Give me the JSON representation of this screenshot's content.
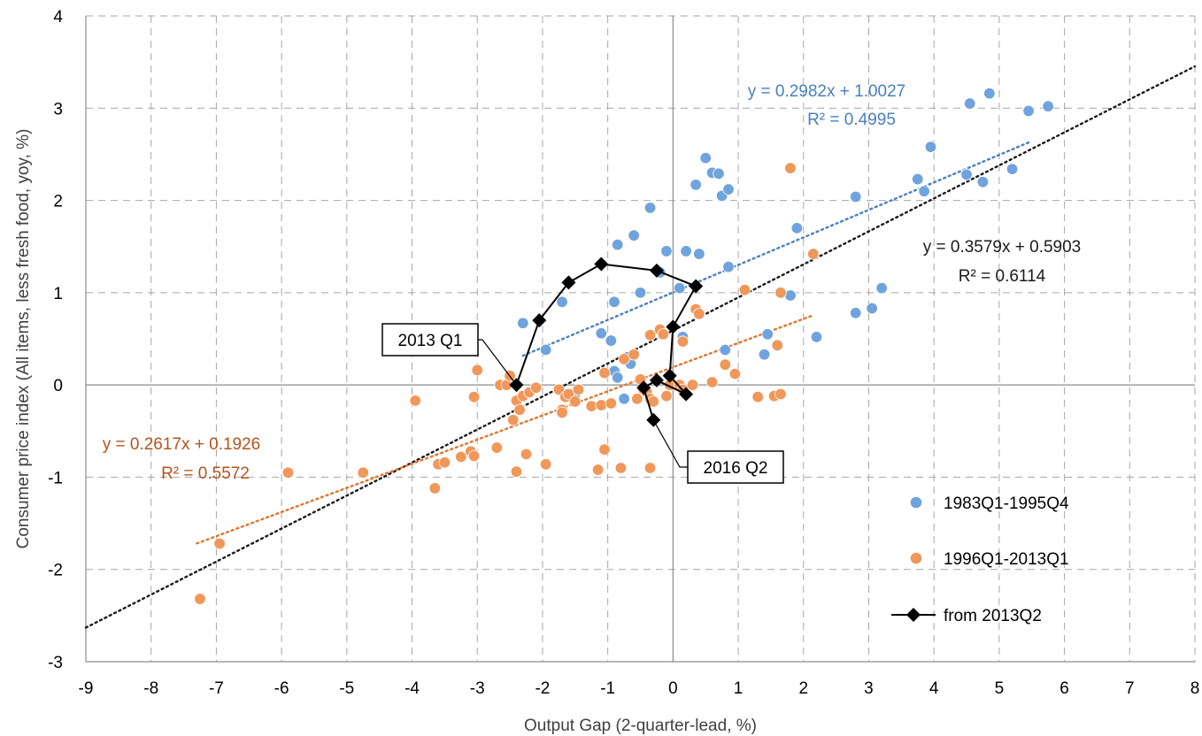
{
  "chart_data": {
    "type": "scatter",
    "xlabel": "Output Gap (2-quarter-lead, %)",
    "ylabel": "Consumer price index (All items, less fresh food, yoy, %)",
    "xlim": [
      -9,
      8
    ],
    "ylim": [
      -3,
      4
    ],
    "x_ticks": [
      "-9",
      "-8",
      "-7",
      "-6",
      "-5",
      "-4",
      "-3",
      "-2",
      "-1",
      "0",
      "1",
      "2",
      "3",
      "4",
      "5",
      "6",
      "7",
      "8"
    ],
    "y_ticks": [
      "-3",
      "-2",
      "-1",
      "0",
      "1",
      "2",
      "3",
      "4"
    ],
    "grid": true,
    "legend_position": "right",
    "series": [
      {
        "name": "1983Q1-1995Q4",
        "color": "#6fa3dd",
        "marker": "circle",
        "points": [
          [
            -2.3,
            0.67
          ],
          [
            -1.95,
            0.38
          ],
          [
            -1.7,
            0.9
          ],
          [
            -0.9,
            0.9
          ],
          [
            -1.1,
            0.56
          ],
          [
            -0.95,
            0.48
          ],
          [
            -0.85,
            1.52
          ],
          [
            -0.6,
            1.62
          ],
          [
            -0.35,
            1.92
          ],
          [
            -0.2,
            1.22
          ],
          [
            -0.1,
            1.45
          ],
          [
            0.35,
            2.17
          ],
          [
            0.5,
            2.46
          ],
          [
            0.6,
            2.3
          ],
          [
            0.7,
            2.29
          ],
          [
            0.75,
            2.05
          ],
          [
            0.85,
            2.12
          ],
          [
            0.2,
            1.45
          ],
          [
            0.4,
            1.42
          ],
          [
            0.85,
            1.28
          ],
          [
            0.1,
            1.05
          ],
          [
            -0.5,
            1.0
          ],
          [
            -0.9,
            0.15
          ],
          [
            -0.85,
            0.08
          ],
          [
            -0.7,
            0.3
          ],
          [
            -0.65,
            0.23
          ],
          [
            -0.75,
            -0.15
          ],
          [
            -1.5,
            -0.1
          ],
          [
            0.15,
            0.52
          ],
          [
            0.8,
            0.38
          ],
          [
            1.4,
            0.33
          ],
          [
            1.45,
            0.55
          ],
          [
            1.8,
            0.97
          ],
          [
            1.9,
            1.7
          ],
          [
            2.2,
            0.52
          ],
          [
            2.8,
            0.78
          ],
          [
            2.8,
            2.04
          ],
          [
            3.05,
            0.83
          ],
          [
            3.2,
            1.05
          ],
          [
            3.75,
            2.23
          ],
          [
            3.85,
            2.1
          ],
          [
            3.95,
            2.58
          ],
          [
            4.5,
            2.28
          ],
          [
            4.55,
            3.05
          ],
          [
            4.75,
            2.2
          ],
          [
            4.85,
            3.16
          ],
          [
            5.2,
            2.34
          ],
          [
            5.45,
            2.97
          ],
          [
            5.75,
            3.02
          ]
        ],
        "trendline": {
          "equation": "y = 0.2982x + 1.0027",
          "r2": "R² = 0.4995",
          "slope": 0.2982,
          "intercept": 1.0027,
          "x_range": [
            -2.3,
            5.5
          ]
        }
      },
      {
        "name": "1996Q1-2013Q1",
        "color": "#f0975a",
        "marker": "circle",
        "points": [
          [
            -7.25,
            -2.32
          ],
          [
            -6.95,
            -1.72
          ],
          [
            -5.9,
            -0.95
          ],
          [
            -4.75,
            -0.95
          ],
          [
            -3.95,
            -0.17
          ],
          [
            -3.65,
            -1.12
          ],
          [
            -3.6,
            -0.86
          ],
          [
            -3.5,
            -0.84
          ],
          [
            -3.25,
            -0.78
          ],
          [
            -3.1,
            -0.72
          ],
          [
            -3.05,
            -0.77
          ],
          [
            -3.05,
            -0.13
          ],
          [
            -3.0,
            0.16
          ],
          [
            -2.7,
            -0.68
          ],
          [
            -2.65,
            0.0
          ],
          [
            -2.55,
            0.0
          ],
          [
            -2.5,
            0.1
          ],
          [
            -2.45,
            -0.38
          ],
          [
            -2.4,
            -0.17
          ],
          [
            -2.4,
            -0.94
          ],
          [
            -2.35,
            -0.27
          ],
          [
            -2.3,
            -0.12
          ],
          [
            -2.25,
            -0.75
          ],
          [
            -2.2,
            -0.08
          ],
          [
            -2.1,
            -0.03
          ],
          [
            -1.95,
            -0.86
          ],
          [
            -1.75,
            -0.05
          ],
          [
            -1.7,
            -0.27
          ],
          [
            -1.7,
            -0.3
          ],
          [
            -1.65,
            -0.13
          ],
          [
            -1.6,
            -0.1
          ],
          [
            -1.5,
            -0.18
          ],
          [
            -1.45,
            -0.05
          ],
          [
            -1.25,
            -0.23
          ],
          [
            -1.15,
            -0.92
          ],
          [
            -1.1,
            -0.22
          ],
          [
            -1.05,
            0.13
          ],
          [
            -1.05,
            -0.7
          ],
          [
            -0.95,
            -0.2
          ],
          [
            -0.8,
            -0.9
          ],
          [
            -0.75,
            0.28
          ],
          [
            -0.6,
            0.33
          ],
          [
            -0.55,
            -0.15
          ],
          [
            -0.5,
            0.06
          ],
          [
            -0.45,
            -0.05
          ],
          [
            -0.4,
            -0.08
          ],
          [
            -0.35,
            -0.15
          ],
          [
            -0.35,
            0.54
          ],
          [
            -0.35,
            -0.9
          ],
          [
            -0.3,
            -0.18
          ],
          [
            -0.2,
            0.6
          ],
          [
            -0.15,
            0.55
          ],
          [
            -0.1,
            -0.12
          ],
          [
            -0.05,
            0.0
          ],
          [
            0.1,
            0.0
          ],
          [
            0.15,
            -0.05
          ],
          [
            0.15,
            0.47
          ],
          [
            0.3,
            0.0
          ],
          [
            0.35,
            0.82
          ],
          [
            0.4,
            0.77
          ],
          [
            0.6,
            0.03
          ],
          [
            0.8,
            0.22
          ],
          [
            0.95,
            0.12
          ],
          [
            1.1,
            1.03
          ],
          [
            1.3,
            -0.13
          ],
          [
            1.55,
            -0.12
          ],
          [
            1.6,
            0.43
          ],
          [
            1.65,
            -0.1
          ],
          [
            1.65,
            1.0
          ],
          [
            1.8,
            2.35
          ],
          [
            2.15,
            1.42
          ]
        ],
        "trendline": {
          "equation": "y = 0.2617x + 0.1926",
          "r2": "R² = 0.5572",
          "slope": 0.2617,
          "intercept": 0.1926,
          "x_range": [
            -7.3,
            2.15
          ]
        }
      },
      {
        "name": "from 2013Q2",
        "color": "#000000",
        "marker": "diamond",
        "connected": true,
        "points": [
          [
            -2.4,
            0.0
          ],
          [
            -2.05,
            0.7
          ],
          [
            -1.6,
            1.11
          ],
          [
            -1.1,
            1.31
          ],
          [
            -0.25,
            1.24
          ],
          [
            0.35,
            1.07
          ],
          [
            0.0,
            0.63
          ],
          [
            -0.05,
            0.1
          ],
          [
            0.2,
            -0.1
          ],
          [
            -0.25,
            0.05
          ],
          [
            -0.45,
            -0.03
          ],
          [
            -0.3,
            -0.38
          ]
        ]
      }
    ],
    "overall_trendline": {
      "equation": "y = 0.3579x + 0.5903",
      "r2": "R² = 0.6114",
      "slope": 0.3579,
      "intercept": 0.5903,
      "x_range": [
        -9,
        8
      ],
      "color": "#1a1a1a"
    },
    "annotations": [
      {
        "text": "2013 Q1",
        "target": [
          -2.4,
          0.0
        ]
      },
      {
        "text": "2016 Q2",
        "target": [
          -0.3,
          -0.38
        ]
      }
    ]
  }
}
